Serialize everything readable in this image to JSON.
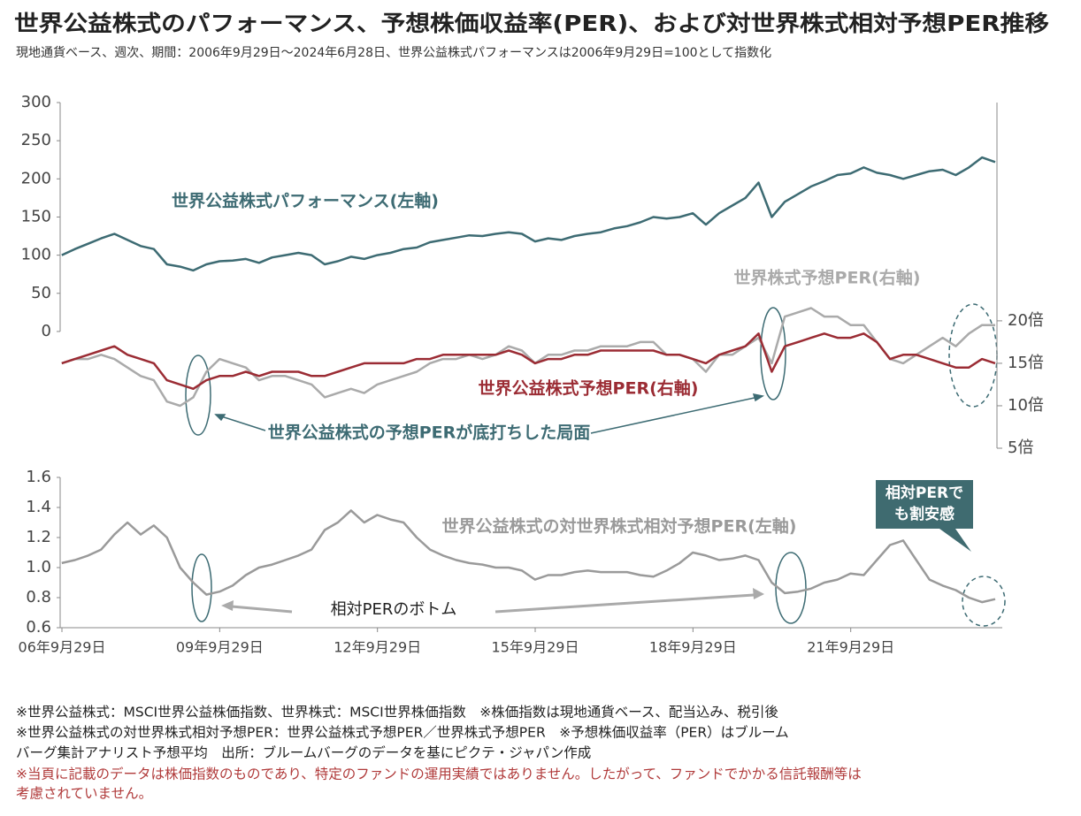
{
  "header": {
    "title": "世界公益株式のパフォーマンス、予想株価収益率(PER)、および対世界株式相対予想PER推移",
    "subtitle": "現地通貨ベース、週次、期間：2006年9月29日～2024年6月28日、世界公益株式パフォーマンスは2006年9月29日=100として指数化"
  },
  "chart_data": [
    {
      "type": "line",
      "x": [
        "2006-09",
        "2006-12",
        "2007-03",
        "2007-06",
        "2007-09",
        "2007-12",
        "2008-03",
        "2008-06",
        "2008-09",
        "2008-12",
        "2009-03",
        "2009-06",
        "2009-09",
        "2009-12",
        "2010-03",
        "2010-06",
        "2010-09",
        "2010-12",
        "2011-03",
        "2011-06",
        "2011-09",
        "2011-12",
        "2012-03",
        "2012-06",
        "2012-09",
        "2012-12",
        "2013-03",
        "2013-06",
        "2013-09",
        "2013-12",
        "2014-03",
        "2014-06",
        "2014-09",
        "2014-12",
        "2015-03",
        "2015-06",
        "2015-09",
        "2015-12",
        "2016-03",
        "2016-06",
        "2016-09",
        "2016-12",
        "2017-03",
        "2017-06",
        "2017-09",
        "2017-12",
        "2018-03",
        "2018-06",
        "2018-09",
        "2018-12",
        "2019-03",
        "2019-06",
        "2019-09",
        "2019-12",
        "2020-03",
        "2020-06",
        "2020-09",
        "2020-12",
        "2021-03",
        "2021-06",
        "2021-09",
        "2021-12",
        "2022-03",
        "2022-06",
        "2022-09",
        "2022-12",
        "2023-03",
        "2023-06",
        "2023-09",
        "2023-12",
        "2024-03",
        "2024-06"
      ],
      "xlim": [
        "2006-09-29",
        "2024-06-28"
      ],
      "ylim": [
        -153,
        300
      ],
      "yticks": [
        0,
        50,
        100,
        150,
        200,
        250,
        300
      ],
      "y2lim": [
        5,
        45.7
      ],
      "y2ticks": [
        {
          "value": 5,
          "label": "5倍"
        },
        {
          "value": 10,
          "label": "10倍"
        },
        {
          "value": 15,
          "label": "15倍"
        },
        {
          "value": 20,
          "label": "20倍"
        }
      ],
      "series": [
        {
          "name": "世界公益株式パフォーマンス(左軸)",
          "color": "#3d6b73",
          "values": [
            100,
            108,
            115,
            122,
            128,
            120,
            112,
            108,
            88,
            85,
            80,
            88,
            92,
            93,
            95,
            90,
            97,
            100,
            103,
            100,
            88,
            92,
            98,
            95,
            100,
            103,
            108,
            110,
            117,
            120,
            123,
            126,
            125,
            128,
            130,
            128,
            118,
            122,
            120,
            125,
            128,
            130,
            135,
            138,
            143,
            150,
            148,
            150,
            155,
            140,
            155,
            165,
            175,
            195,
            150,
            170,
            180,
            190,
            197,
            205,
            207,
            215,
            208,
            205,
            200,
            205,
            210,
            212,
            205,
            215,
            228,
            222
          ]
        },
        {
          "name": "世界株式予想PER(右軸)",
          "color": "#aaaaaa",
          "axis": "y2",
          "values": [
            15,
            15.5,
            15.5,
            16,
            15.5,
            14.5,
            13.5,
            13,
            10.5,
            10,
            11,
            14,
            15.5,
            15,
            14.5,
            13,
            13.5,
            13.5,
            13,
            12.5,
            11,
            11.5,
            12,
            11.5,
            12.5,
            13,
            13.5,
            14,
            15,
            15.5,
            15.5,
            16,
            15.5,
            16,
            17,
            16.5,
            15,
            16,
            16,
            16.5,
            16.5,
            17,
            17,
            17,
            17.5,
            17.5,
            16,
            16,
            15.5,
            14,
            16,
            16,
            17,
            18,
            15,
            20.5,
            21,
            21.5,
            20.5,
            20.5,
            19.5,
            19.5,
            17.5,
            15.5,
            15,
            16,
            17,
            18,
            17,
            18.5,
            19.5,
            19.5
          ]
        },
        {
          "name": "世界公益株式予想PER(右軸)",
          "color": "#9b2c34",
          "axis": "y2",
          "values": [
            15,
            15.5,
            16,
            16.5,
            17,
            16,
            15.5,
            15,
            13,
            12.5,
            12,
            13,
            13.5,
            13.5,
            14,
            13.5,
            14,
            14,
            14,
            13.5,
            13.5,
            14,
            14.5,
            15,
            15,
            15,
            15,
            15.5,
            15.5,
            16,
            16,
            16,
            16,
            16,
            16.5,
            16,
            15,
            15.5,
            15.5,
            16,
            16,
            16.5,
            16.5,
            16.5,
            16.5,
            16.5,
            16,
            16,
            15.5,
            15,
            16,
            16.5,
            17,
            18.5,
            14,
            17,
            17.5,
            18,
            18.5,
            18,
            18,
            18.5,
            17.5,
            15.5,
            16,
            16,
            15.5,
            15,
            14.5,
            14.5,
            15.5,
            15
          ]
        }
      ],
      "annotations": [
        "世界公益株式の予想PERが底打ちした局面"
      ]
    },
    {
      "type": "line",
      "x": [
        "2006-09",
        "2006-12",
        "2007-03",
        "2007-06",
        "2007-09",
        "2007-12",
        "2008-03",
        "2008-06",
        "2008-09",
        "2008-12",
        "2009-03",
        "2009-06",
        "2009-09",
        "2009-12",
        "2010-03",
        "2010-06",
        "2010-09",
        "2010-12",
        "2011-03",
        "2011-06",
        "2011-09",
        "2011-12",
        "2012-03",
        "2012-06",
        "2012-09",
        "2012-12",
        "2013-03",
        "2013-06",
        "2013-09",
        "2013-12",
        "2014-03",
        "2014-06",
        "2014-09",
        "2014-12",
        "2015-03",
        "2015-06",
        "2015-09",
        "2015-12",
        "2016-03",
        "2016-06",
        "2016-09",
        "2016-12",
        "2017-03",
        "2017-06",
        "2017-09",
        "2017-12",
        "2018-03",
        "2018-06",
        "2018-09",
        "2018-12",
        "2019-03",
        "2019-06",
        "2019-09",
        "2019-12",
        "2020-03",
        "2020-06",
        "2020-09",
        "2020-12",
        "2021-03",
        "2021-06",
        "2021-09",
        "2021-12",
        "2022-03",
        "2022-06",
        "2022-09",
        "2022-12",
        "2023-03",
        "2023-06",
        "2023-09",
        "2023-12",
        "2024-03",
        "2024-06"
      ],
      "xlim": [
        "2006-09-29",
        "2024-06-28"
      ],
      "xticks": [
        {
          "value": "2006-09-29",
          "label": "06年9月29日"
        },
        {
          "value": "2009-09-29",
          "label": "09年9月29日"
        },
        {
          "value": "2012-09-29",
          "label": "12年9月29日"
        },
        {
          "value": "2015-09-29",
          "label": "15年9月29日"
        },
        {
          "value": "2018-09-29",
          "label": "18年9月29日"
        },
        {
          "value": "2021-09-29",
          "label": "21年9月29日"
        }
      ],
      "ylim": [
        0.6,
        1.6
      ],
      "yticks": [
        {
          "value": 0.6,
          "label": "0.6"
        },
        {
          "value": 0.8,
          "label": "0.8"
        },
        {
          "value": 1.0,
          "label": "1.0"
        },
        {
          "value": 1.2,
          "label": "1.2"
        },
        {
          "value": 1.4,
          "label": "1.4"
        },
        {
          "value": 1.6,
          "label": "1.6"
        }
      ],
      "series": [
        {
          "name": "世界公益株式の対世界株式相対予想PER(左軸)",
          "color": "#9a9a9a",
          "values": [
            1.03,
            1.05,
            1.08,
            1.12,
            1.22,
            1.3,
            1.22,
            1.28,
            1.2,
            1.0,
            0.9,
            0.82,
            0.84,
            0.88,
            0.95,
            1.0,
            1.02,
            1.05,
            1.08,
            1.12,
            1.25,
            1.3,
            1.38,
            1.3,
            1.35,
            1.32,
            1.3,
            1.2,
            1.12,
            1.08,
            1.05,
            1.03,
            1.02,
            1.0,
            1.0,
            0.98,
            0.92,
            0.95,
            0.95,
            0.97,
            0.98,
            0.97,
            0.97,
            0.97,
            0.95,
            0.94,
            0.98,
            1.03,
            1.1,
            1.08,
            1.05,
            1.06,
            1.08,
            1.05,
            0.9,
            0.83,
            0.84,
            0.86,
            0.9,
            0.92,
            0.96,
            0.95,
            1.05,
            1.15,
            1.18,
            1.05,
            0.92,
            0.88,
            0.85,
            0.8,
            0.77,
            0.79
          ]
        }
      ],
      "annotations": [
        "相対PERのボトム"
      ],
      "callout": [
        "相対PERで",
        "も割安感"
      ]
    }
  ],
  "notes": [
    "※世界公益株式：MSCI世界公益株価指数、世界株式：MSCI世界株価指数　※株価指数は現地通貨ベース、配当込み、税引後",
    "※世界公益株式の対世界株式相対予想PER：世界公益株式予想PER／世界株式予想PER　※予想株価収益率（PER）はブルーム",
    "バーグ集計アナリスト予想平均　出所：ブルームバーグのデータを基にピクテ・ジャパン作成"
  ],
  "warning": [
    "※当頁に記載のデータは株価指数のものであり、特定のファンドの運用実績ではありません。したがって、ファンドでかかる信託報酬等は",
    "考慮されていません。"
  ]
}
